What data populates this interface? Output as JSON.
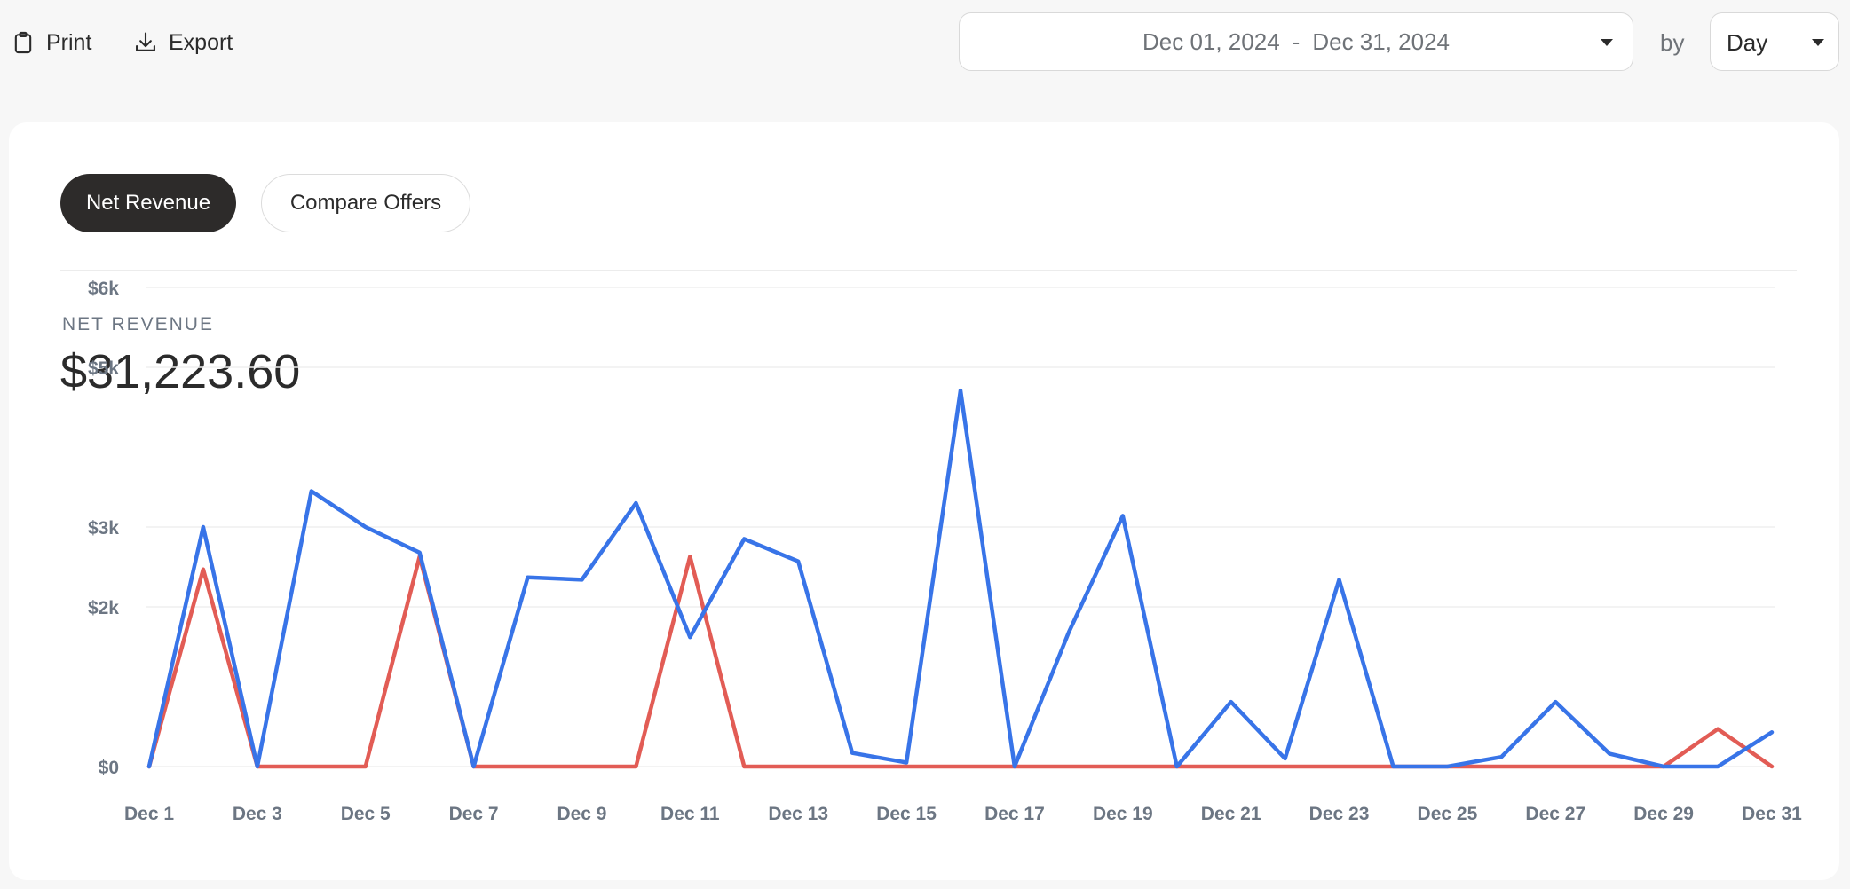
{
  "toolbar": {
    "print_label": "Print",
    "export_label": "Export"
  },
  "date_range": {
    "start": "Dec 01, 2024",
    "separator": "-",
    "end": "Dec 31, 2024"
  },
  "by_label": "by",
  "period": {
    "selected": "Day"
  },
  "tabs": [
    {
      "label": "Net Revenue",
      "active": true
    },
    {
      "label": "Compare Offers",
      "active": false
    }
  ],
  "metric": {
    "label": "NET REVENUE",
    "value": "$31,223.60"
  },
  "colors": {
    "series_1": "#3874e8",
    "series_2": "#e25c55",
    "active_tab": "#2d2b2a"
  },
  "chart_data": {
    "type": "line",
    "x": [
      1,
      2,
      3,
      4,
      5,
      6,
      7,
      8,
      9,
      10,
      11,
      12,
      13,
      14,
      15,
      16,
      17,
      18,
      19,
      20,
      21,
      22,
      23,
      24,
      25,
      26,
      27,
      28,
      29,
      30,
      31
    ],
    "x_tick_values": [
      1,
      3,
      5,
      7,
      9,
      11,
      13,
      15,
      17,
      19,
      21,
      23,
      25,
      27,
      29,
      31
    ],
    "x_tick_labels": [
      "Dec 1",
      "Dec 3",
      "Dec 5",
      "Dec 7",
      "Dec 9",
      "Dec 11",
      "Dec 13",
      "Dec 15",
      "Dec 17",
      "Dec 19",
      "Dec 21",
      "Dec 23",
      "Dec 25",
      "Dec 27",
      "Dec 29",
      "Dec 31"
    ],
    "y_tick_values": [
      0,
      2000,
      3000,
      5000,
      6000
    ],
    "y_tick_labels": [
      "$0",
      "$2k",
      "$3k",
      "$5k",
      "$6k"
    ],
    "ylim": [
      0,
      6000
    ],
    "grid": true,
    "series": [
      {
        "color": "#3874e8",
        "values": [
          0,
          3000,
          0,
          3450,
          3000,
          2680,
          0,
          2370,
          2340,
          3300,
          1620,
          2850,
          2570,
          170,
          50,
          4710,
          0,
          1680,
          3140,
          0,
          810,
          100,
          2340,
          0,
          0,
          120,
          810,
          160,
          0,
          0,
          430
        ]
      },
      {
        "color": "#e25c55",
        "values": [
          0,
          2470,
          0,
          0,
          0,
          2630,
          0,
          0,
          0,
          0,
          2630,
          0,
          0,
          0,
          0,
          0,
          0,
          0,
          0,
          0,
          0,
          0,
          0,
          0,
          0,
          0,
          0,
          0,
          0,
          470,
          0
        ]
      }
    ]
  }
}
